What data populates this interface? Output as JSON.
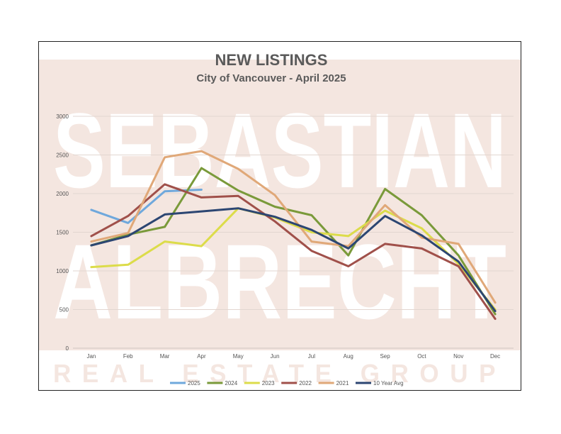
{
  "watermark": {
    "line1": "SEBASTIAN",
    "line2": "ALBRECHT",
    "line3": "REAL ESTATE GROUP",
    "band_color": "#f4e6e0"
  },
  "chart_data": {
    "type": "line",
    "title": "NEW LISTINGS",
    "subtitle": "City of Vancouver - April 2025",
    "categories": [
      "Jan",
      "Feb",
      "Mar",
      "Apr",
      "May",
      "Jun",
      "Jul",
      "Aug",
      "Sep",
      "Oct",
      "Nov",
      "Dec"
    ],
    "ylim": [
      0,
      3000
    ],
    "yticks": [
      0,
      500,
      1000,
      1500,
      2000,
      2500,
      3000
    ],
    "grid": true,
    "legend_position": "bottom",
    "series": [
      {
        "name": "2025",
        "color": "#6fa8dc",
        "values": [
          1790,
          1620,
          2030,
          2050,
          null,
          null,
          null,
          null,
          null,
          null,
          null,
          null
        ]
      },
      {
        "name": "2024",
        "color": "#7a9a3a",
        "values": [
          1330,
          1470,
          1570,
          2330,
          2040,
          1830,
          1720,
          1200,
          2060,
          1720,
          1200,
          440
        ]
      },
      {
        "name": "2023",
        "color": "#dcdc4a",
        "values": [
          1050,
          1080,
          1380,
          1320,
          1810,
          1690,
          1500,
          1450,
          1780,
          1550,
          1090,
          500
        ]
      },
      {
        "name": "2022",
        "color": "#a0504a",
        "values": [
          1450,
          1710,
          2120,
          1950,
          1970,
          1640,
          1260,
          1060,
          1350,
          1290,
          1060,
          380
        ]
      },
      {
        "name": "2021",
        "color": "#e0a878",
        "values": [
          1380,
          1490,
          2470,
          2550,
          2320,
          1980,
          1380,
          1320,
          1850,
          1430,
          1350,
          590
        ]
      },
      {
        "name": "10 Year Avg",
        "color": "#2c4672",
        "values": [
          1330,
          1450,
          1730,
          1770,
          1810,
          1700,
          1530,
          1290,
          1710,
          1460,
          1120,
          480
        ]
      }
    ]
  }
}
